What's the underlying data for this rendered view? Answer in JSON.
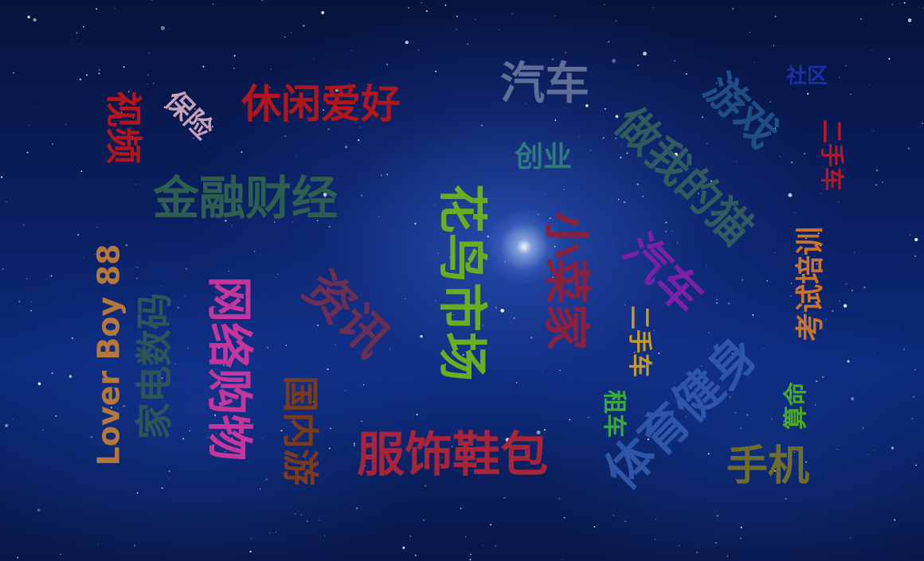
{
  "words": [
    {
      "text": "休闲爱好",
      "color": "#b0161c"
    },
    {
      "text": "视频",
      "color": "#b0161c"
    },
    {
      "text": "保险",
      "color": "#c8a2b8"
    },
    {
      "text": "汽车",
      "color": "#5d6f96"
    },
    {
      "text": "游戏",
      "color": "#1f4e86"
    },
    {
      "text": "社区",
      "color": "#1d2fa8"
    },
    {
      "text": "创业",
      "color": "#2f7a7e"
    },
    {
      "text": "做我的猫",
      "color": "#2f5a5e"
    },
    {
      "text": "二手车",
      "color": "#b31828"
    },
    {
      "text": "金融财经",
      "color": "#2e5e50"
    },
    {
      "text": "花鸟市场",
      "color": "#6aae1f"
    },
    {
      "text": "小菜家",
      "color": "#8a1f3e"
    },
    {
      "text": "汽车",
      "color": "#7a1fa6"
    },
    {
      "text": "考试培训",
      "color": "#c9742a"
    },
    {
      "text": "Lover Boy 88",
      "color": "#b5773a"
    },
    {
      "text": "家电数码",
      "color": "#2e5458"
    },
    {
      "text": "网络购物",
      "color": "#c4369e"
    },
    {
      "text": "资讯",
      "color": "#6a2f52"
    },
    {
      "text": "国内游",
      "color": "#7a3a1c"
    },
    {
      "text": "服饰鞋包",
      "color": "#a82438"
    },
    {
      "text": "二手车",
      "color": "#c29a2a"
    },
    {
      "text": "租车",
      "color": "#3aa83a"
    },
    {
      "text": "体育健身",
      "color": "#2d55a8"
    },
    {
      "text": "算命",
      "color": "#4ea828"
    },
    {
      "text": "手机",
      "color": "#6e6e2a"
    }
  ]
}
